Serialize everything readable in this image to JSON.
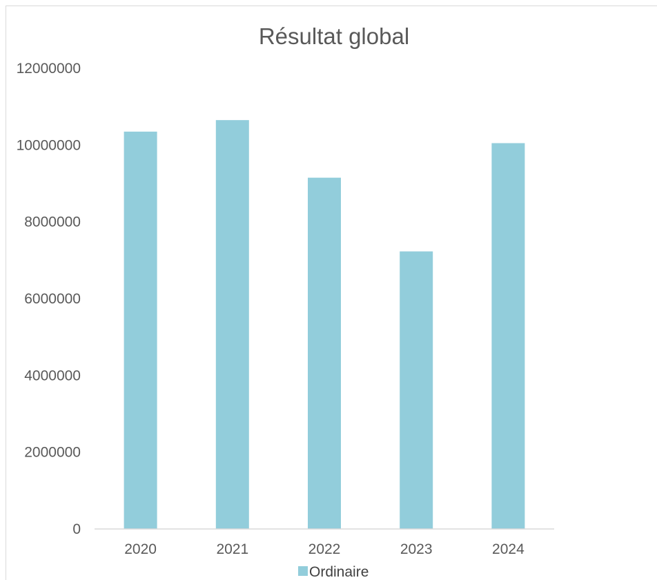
{
  "chart_data": {
    "type": "bar",
    "title": "Résultat global",
    "xlabel": "",
    "ylabel": "",
    "categories": [
      "2020",
      "2021",
      "2022",
      "2023",
      "2024"
    ],
    "series": [
      {
        "name": "Ordinaire",
        "values": [
          10350000,
          10650000,
          9150000,
          7230000,
          10050000
        ],
        "color": "#92cddb"
      }
    ],
    "ylim": [
      0,
      12000000
    ],
    "yticks": [
      "0",
      "2000000",
      "4000000",
      "6000000",
      "8000000",
      "10000000",
      "12000000"
    ],
    "grid": false,
    "legend_position": "bottom"
  }
}
